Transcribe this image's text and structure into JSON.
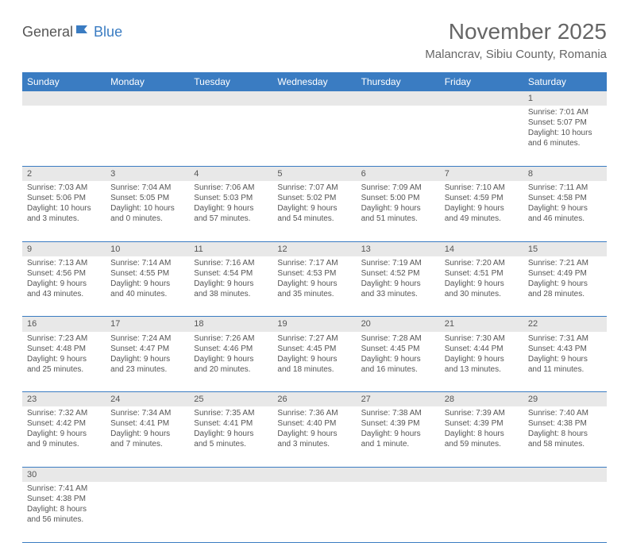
{
  "logo": {
    "part1": "General",
    "part2": "Blue"
  },
  "title": "November 2025",
  "location": "Malancrav, Sibiu County, Romania",
  "header_bg": "#3a7cc2",
  "daynum_bg": "#e8e8e8",
  "text_color": "#555555",
  "days": [
    "Sunday",
    "Monday",
    "Tuesday",
    "Wednesday",
    "Thursday",
    "Friday",
    "Saturday"
  ],
  "weeks": [
    [
      null,
      null,
      null,
      null,
      null,
      null,
      {
        "n": "1",
        "sr": "7:01 AM",
        "ss": "5:07 PM",
        "dl": "10 hours and 6 minutes."
      }
    ],
    [
      {
        "n": "2",
        "sr": "7:03 AM",
        "ss": "5:06 PM",
        "dl": "10 hours and 3 minutes."
      },
      {
        "n": "3",
        "sr": "7:04 AM",
        "ss": "5:05 PM",
        "dl": "10 hours and 0 minutes."
      },
      {
        "n": "4",
        "sr": "7:06 AM",
        "ss": "5:03 PM",
        "dl": "9 hours and 57 minutes."
      },
      {
        "n": "5",
        "sr": "7:07 AM",
        "ss": "5:02 PM",
        "dl": "9 hours and 54 minutes."
      },
      {
        "n": "6",
        "sr": "7:09 AM",
        "ss": "5:00 PM",
        "dl": "9 hours and 51 minutes."
      },
      {
        "n": "7",
        "sr": "7:10 AM",
        "ss": "4:59 PM",
        "dl": "9 hours and 49 minutes."
      },
      {
        "n": "8",
        "sr": "7:11 AM",
        "ss": "4:58 PM",
        "dl": "9 hours and 46 minutes."
      }
    ],
    [
      {
        "n": "9",
        "sr": "7:13 AM",
        "ss": "4:56 PM",
        "dl": "9 hours and 43 minutes."
      },
      {
        "n": "10",
        "sr": "7:14 AM",
        "ss": "4:55 PM",
        "dl": "9 hours and 40 minutes."
      },
      {
        "n": "11",
        "sr": "7:16 AM",
        "ss": "4:54 PM",
        "dl": "9 hours and 38 minutes."
      },
      {
        "n": "12",
        "sr": "7:17 AM",
        "ss": "4:53 PM",
        "dl": "9 hours and 35 minutes."
      },
      {
        "n": "13",
        "sr": "7:19 AM",
        "ss": "4:52 PM",
        "dl": "9 hours and 33 minutes."
      },
      {
        "n": "14",
        "sr": "7:20 AM",
        "ss": "4:51 PM",
        "dl": "9 hours and 30 minutes."
      },
      {
        "n": "15",
        "sr": "7:21 AM",
        "ss": "4:49 PM",
        "dl": "9 hours and 28 minutes."
      }
    ],
    [
      {
        "n": "16",
        "sr": "7:23 AM",
        "ss": "4:48 PM",
        "dl": "9 hours and 25 minutes."
      },
      {
        "n": "17",
        "sr": "7:24 AM",
        "ss": "4:47 PM",
        "dl": "9 hours and 23 minutes."
      },
      {
        "n": "18",
        "sr": "7:26 AM",
        "ss": "4:46 PM",
        "dl": "9 hours and 20 minutes."
      },
      {
        "n": "19",
        "sr": "7:27 AM",
        "ss": "4:45 PM",
        "dl": "9 hours and 18 minutes."
      },
      {
        "n": "20",
        "sr": "7:28 AM",
        "ss": "4:45 PM",
        "dl": "9 hours and 16 minutes."
      },
      {
        "n": "21",
        "sr": "7:30 AM",
        "ss": "4:44 PM",
        "dl": "9 hours and 13 minutes."
      },
      {
        "n": "22",
        "sr": "7:31 AM",
        "ss": "4:43 PM",
        "dl": "9 hours and 11 minutes."
      }
    ],
    [
      {
        "n": "23",
        "sr": "7:32 AM",
        "ss": "4:42 PM",
        "dl": "9 hours and 9 minutes."
      },
      {
        "n": "24",
        "sr": "7:34 AM",
        "ss": "4:41 PM",
        "dl": "9 hours and 7 minutes."
      },
      {
        "n": "25",
        "sr": "7:35 AM",
        "ss": "4:41 PM",
        "dl": "9 hours and 5 minutes."
      },
      {
        "n": "26",
        "sr": "7:36 AM",
        "ss": "4:40 PM",
        "dl": "9 hours and 3 minutes."
      },
      {
        "n": "27",
        "sr": "7:38 AM",
        "ss": "4:39 PM",
        "dl": "9 hours and 1 minute."
      },
      {
        "n": "28",
        "sr": "7:39 AM",
        "ss": "4:39 PM",
        "dl": "8 hours and 59 minutes."
      },
      {
        "n": "29",
        "sr": "7:40 AM",
        "ss": "4:38 PM",
        "dl": "8 hours and 58 minutes."
      }
    ],
    [
      {
        "n": "30",
        "sr": "7:41 AM",
        "ss": "4:38 PM",
        "dl": "8 hours and 56 minutes."
      },
      null,
      null,
      null,
      null,
      null,
      null
    ]
  ],
  "labels": {
    "sunrise": "Sunrise:",
    "sunset": "Sunset:",
    "daylight": "Daylight:"
  }
}
